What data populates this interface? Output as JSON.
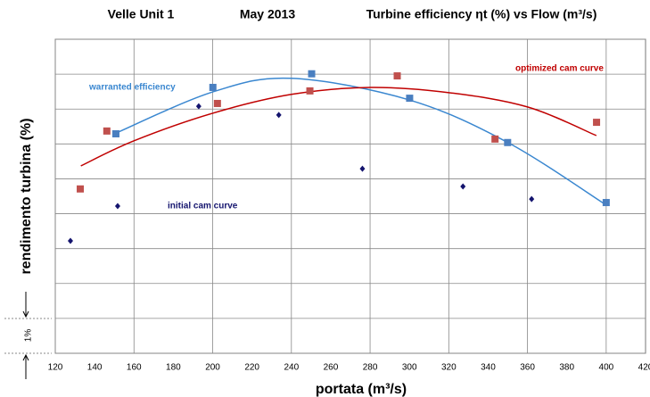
{
  "chart_data": {
    "type": "line",
    "title": "Velle Unit 1",
    "subtitle": "May 2013",
    "caption": "Turbine efficiency ηt (%) vs Flow (m³/s)",
    "x_label": "portata (m³/s)",
    "y_label": "rendimento turbina (%)",
    "scale_note": "1%",
    "xlim": [
      120,
      420
    ],
    "xticks": [
      120,
      140,
      160,
      180,
      200,
      220,
      240,
      260,
      280,
      300,
      320,
      340,
      360,
      380,
      400,
      420
    ],
    "ylim": [
      0,
      9
    ],
    "yticks": [
      0,
      1,
      2,
      3,
      4,
      5,
      6,
      7,
      8,
      9
    ],
    "grid": true,
    "series": [
      {
        "name": "warranted efficiency",
        "color": "#3a87d0",
        "kind": "curve",
        "x": [
          150,
          200,
          240,
          300,
          350,
          400
        ],
        "values": [
          6.29,
          7.49,
          7.88,
          7.26,
          6.04,
          4.25
        ]
      },
      {
        "name": "optimized cam curve",
        "color": "#c00000",
        "kind": "curve",
        "x": [
          133,
          160,
          200,
          240,
          280,
          320,
          360,
          395
        ],
        "values": [
          5.37,
          6.09,
          6.88,
          7.42,
          7.62,
          7.47,
          7.06,
          6.24
        ]
      },
      {
        "color": "#4a7fc0",
        "kind": "square",
        "x": [
          150.8,
          200.1,
          250.3,
          300.1,
          349.9,
          400
        ],
        "values": [
          6.29,
          7.62,
          8.01,
          7.31,
          6.04,
          4.32
        ]
      },
      {
        "color": "#c0504d",
        "kind": "square",
        "x": [
          132.7,
          146.2,
          202.4,
          249.4,
          293.8,
          343.5,
          395.1
        ],
        "values": [
          4.71,
          6.37,
          7.16,
          7.52,
          7.95,
          6.14,
          6.62
        ]
      },
      {
        "name": "initial cam curve",
        "color": "#14146e",
        "kind": "diamond",
        "x": [
          127.7,
          151.7,
          192.9,
          233.6,
          276.1,
          327.2,
          362.1
        ],
        "values": [
          3.22,
          4.22,
          7.08,
          6.83,
          5.29,
          4.78,
          4.42
        ]
      }
    ]
  }
}
